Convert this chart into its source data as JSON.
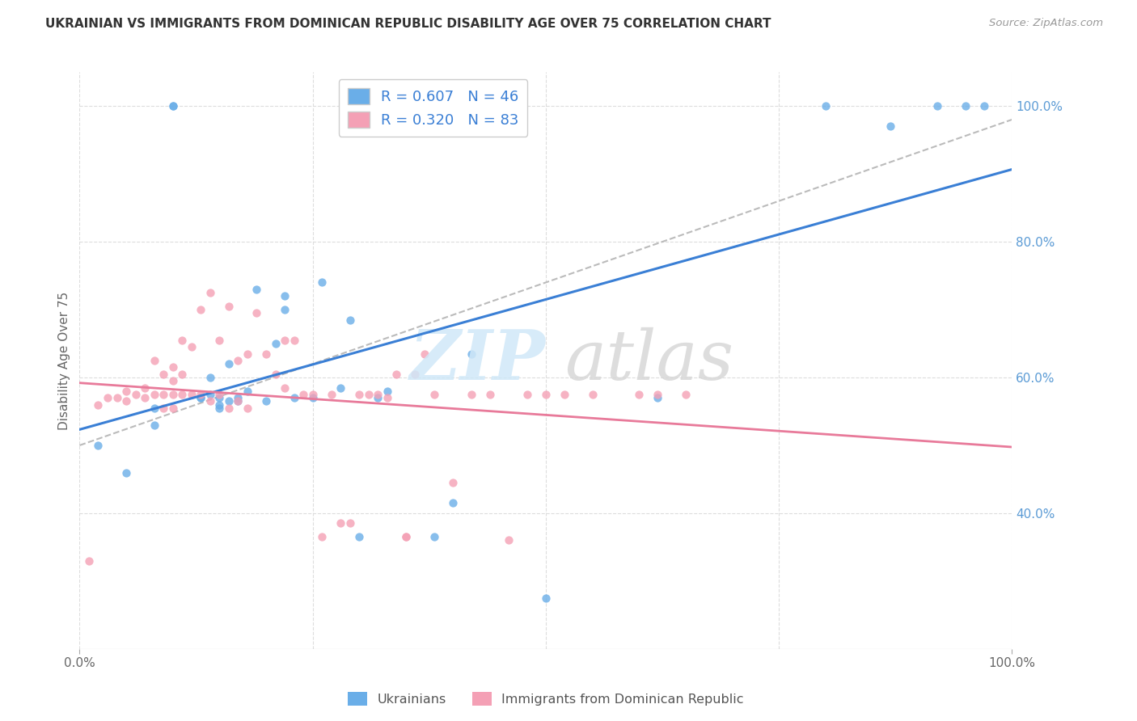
{
  "title": "UKRAINIAN VS IMMIGRANTS FROM DOMINICAN REPUBLIC DISABILITY AGE OVER 75 CORRELATION CHART",
  "source": "Source: ZipAtlas.com",
  "ylabel": "Disability Age Over 75",
  "legend_bottom": [
    "Ukrainians",
    "Immigrants from Dominican Republic"
  ],
  "blue_R": 0.607,
  "blue_N": 46,
  "pink_R": 0.32,
  "pink_N": 83,
  "blue_color": "#6aaee8",
  "pink_color": "#f4a0b5",
  "trendline_blue_color": "#3a7fd5",
  "trendline_pink_color": "#e87a9a",
  "trendline_gray_color": "#bbbbbb",
  "right_axis_color": "#5b9bd5",
  "blue_scatter_x": [
    0.02,
    0.05,
    0.08,
    0.08,
    0.1,
    0.1,
    0.13,
    0.13,
    0.14,
    0.14,
    0.15,
    0.15,
    0.15,
    0.16,
    0.16,
    0.17,
    0.17,
    0.18,
    0.19,
    0.2,
    0.21,
    0.22,
    0.22,
    0.23,
    0.25,
    0.26,
    0.28,
    0.29,
    0.3,
    0.32,
    0.33,
    0.38,
    0.4,
    0.42,
    0.5,
    0.62,
    0.8,
    0.87,
    0.92,
    0.95,
    0.97
  ],
  "blue_scatter_y": [
    0.5,
    0.46,
    0.53,
    0.555,
    1.0,
    1.0,
    0.57,
    0.57,
    0.575,
    0.6,
    0.555,
    0.56,
    0.57,
    0.565,
    0.62,
    0.565,
    0.57,
    0.58,
    0.73,
    0.565,
    0.65,
    0.72,
    0.7,
    0.57,
    0.57,
    0.74,
    0.585,
    0.685,
    0.365,
    0.57,
    0.58,
    0.365,
    0.415,
    0.635,
    0.275,
    0.57,
    1.0,
    0.97,
    1.0,
    1.0,
    1.0
  ],
  "pink_scatter_x": [
    0.01,
    0.02,
    0.03,
    0.04,
    0.05,
    0.05,
    0.06,
    0.07,
    0.07,
    0.08,
    0.08,
    0.09,
    0.09,
    0.09,
    0.1,
    0.1,
    0.1,
    0.1,
    0.11,
    0.11,
    0.11,
    0.12,
    0.12,
    0.13,
    0.13,
    0.14,
    0.14,
    0.15,
    0.15,
    0.16,
    0.16,
    0.17,
    0.17,
    0.18,
    0.18,
    0.19,
    0.2,
    0.21,
    0.22,
    0.22,
    0.23,
    0.24,
    0.25,
    0.26,
    0.27,
    0.28,
    0.29,
    0.3,
    0.31,
    0.32,
    0.33,
    0.34,
    0.35,
    0.35,
    0.36,
    0.37,
    0.38,
    0.4,
    0.42,
    0.44,
    0.46,
    0.48,
    0.5,
    0.52,
    0.55,
    0.6,
    0.62,
    0.65
  ],
  "pink_scatter_y": [
    0.33,
    0.56,
    0.57,
    0.57,
    0.565,
    0.58,
    0.575,
    0.57,
    0.585,
    0.575,
    0.625,
    0.555,
    0.575,
    0.605,
    0.555,
    0.575,
    0.595,
    0.615,
    0.575,
    0.605,
    0.655,
    0.575,
    0.645,
    0.575,
    0.7,
    0.565,
    0.725,
    0.575,
    0.655,
    0.555,
    0.705,
    0.565,
    0.625,
    0.555,
    0.635,
    0.695,
    0.635,
    0.605,
    0.585,
    0.655,
    0.655,
    0.575,
    0.575,
    0.365,
    0.575,
    0.385,
    0.385,
    0.575,
    0.575,
    0.575,
    0.57,
    0.605,
    0.365,
    0.365,
    0.605,
    0.635,
    0.575,
    0.445,
    0.575,
    0.575,
    0.36,
    0.575,
    0.575,
    0.575,
    0.575,
    0.575,
    0.575,
    0.575
  ]
}
